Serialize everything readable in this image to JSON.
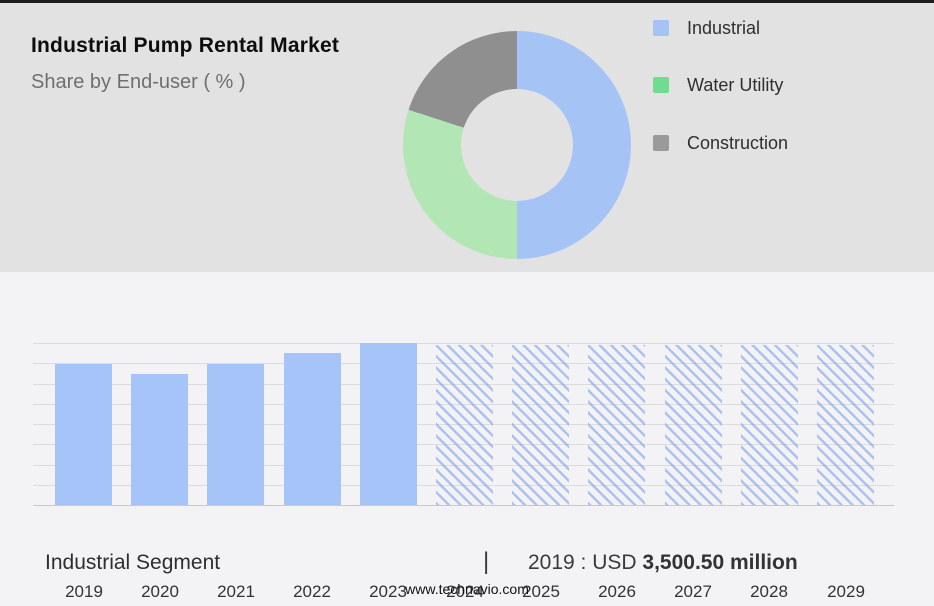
{
  "header": {
    "title": "Industrial Pump Rental Market",
    "subtitle": "Share by End-user ( % )"
  },
  "colors": {
    "top_strip": "#1e1e1e",
    "panel_bg": "#e2e2e2",
    "page_bg": "#f3f3f5",
    "bar_blue": "#a6c4f7",
    "hatch_line": "rgba(128,162,235,0.6)",
    "gridline": "#dcdcdc"
  },
  "chart_data": [
    {
      "type": "pie",
      "title": "Share by End-user ( % )",
      "labels": [
        "Industrial",
        "Water Utility",
        "Construction"
      ],
      "values": [
        50,
        30,
        20
      ],
      "colors": [
        "#a5c3f5",
        "#b3e6b5",
        "#8f8f8f"
      ],
      "legend_colors": [
        "#a5c3f3",
        "#6fdd8d",
        "#9a9a9a"
      ],
      "legend_position": "right",
      "donut_hole_ratio": 0.49,
      "note": "donut; no numeric labels shown, values estimated from arc angles"
    },
    {
      "type": "bar",
      "categories": [
        "2019",
        "2020",
        "2021",
        "2022",
        "2023",
        "2024",
        "2025",
        "2026",
        "2027",
        "2028",
        "2029"
      ],
      "values_relative": [
        0.87,
        0.81,
        0.87,
        0.94,
        1.0,
        0.99,
        0.99,
        0.99,
        0.99,
        0.99,
        0.99
      ],
      "forecast": [
        false,
        false,
        false,
        false,
        false,
        true,
        true,
        true,
        true,
        true,
        true
      ],
      "known_values": {
        "2019": "USD 3,500.50 million"
      },
      "ylabel": "",
      "xlabel": "",
      "grid": true,
      "gridline_count": 9,
      "bar_color": "#a6c4f7"
    }
  ],
  "footer": {
    "segment_label": "Industrial Segment",
    "separator": "|",
    "stat_prefix": "2019 : USD",
    "stat_value": "3,500.50 million",
    "website": "www.technavio.com"
  }
}
